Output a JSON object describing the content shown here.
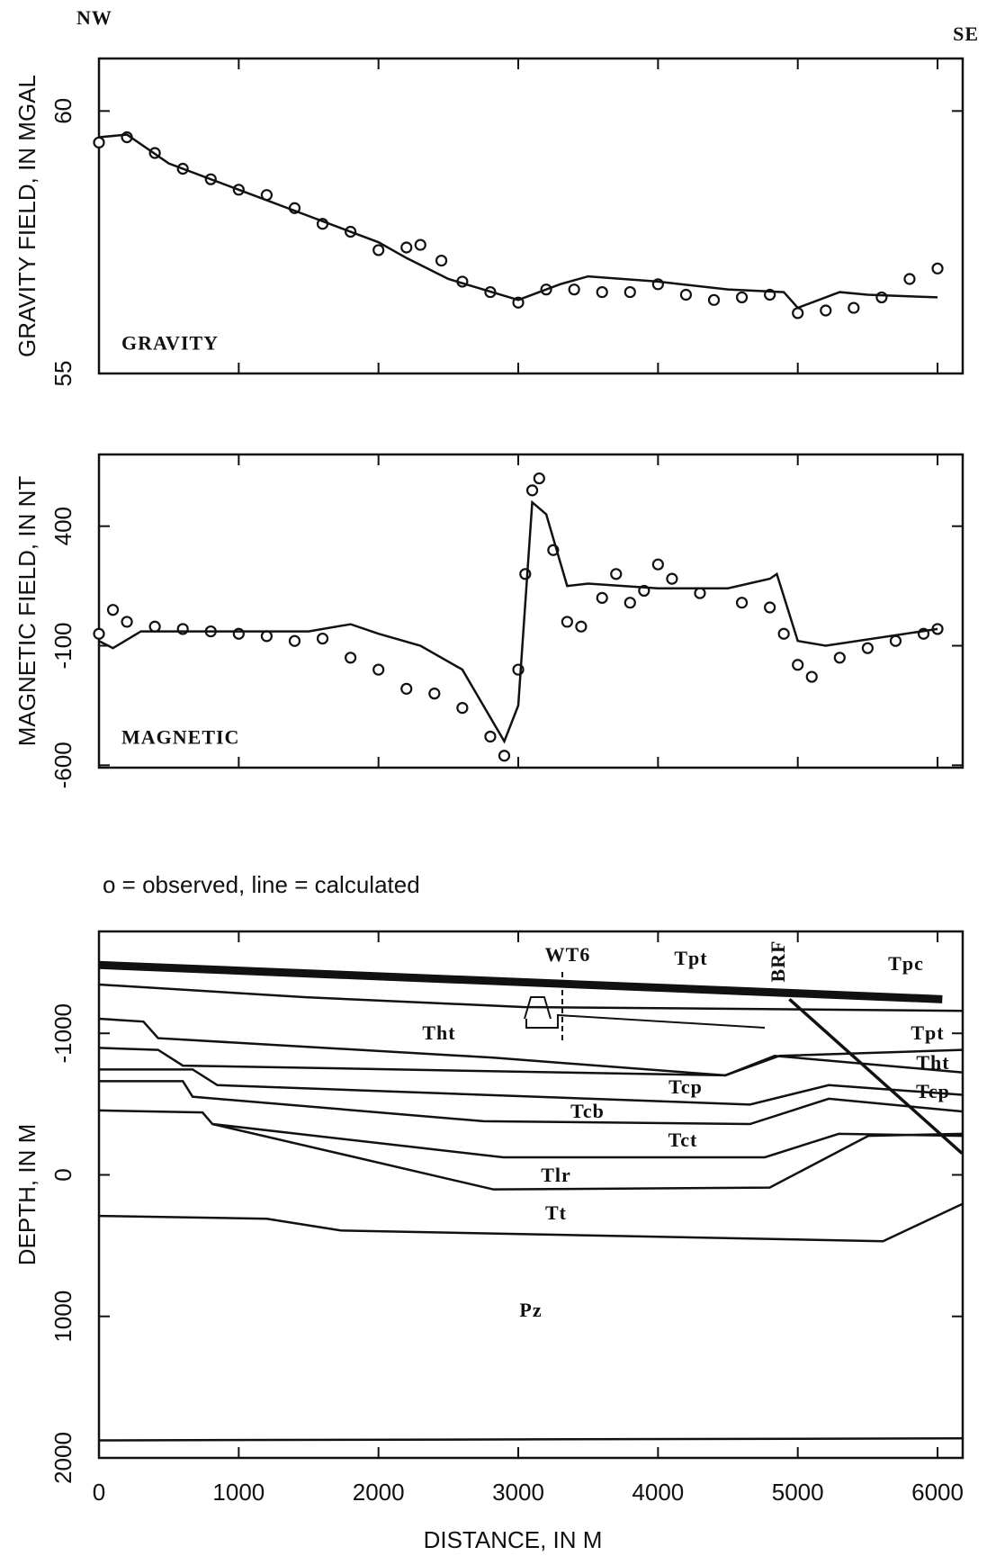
{
  "header": {
    "left": "NW",
    "right": "SE"
  },
  "note": "o = observed, line = calculated",
  "chart_data": [
    {
      "type": "profile",
      "label": "GRAVITY",
      "y_label": "GRAVITY FIELD, IN MGAL",
      "xlim": [
        0,
        6180
      ],
      "ylim": [
        55,
        61
      ],
      "yticks": [
        55,
        60
      ],
      "series": [
        {
          "style": "markers",
          "color": "#111111",
          "x": [
            0,
            200,
            400,
            600,
            800,
            1000,
            1200,
            1400,
            1600,
            1800,
            2000,
            2200,
            2300,
            2450,
            2600,
            2800,
            3000,
            3200,
            3400,
            3600,
            3800,
            4000,
            4200,
            4400,
            4600,
            4800,
            5000,
            5200,
            5400,
            5600,
            5800,
            6000
          ],
          "values": [
            59.4,
            59.5,
            59.2,
            58.9,
            58.7,
            58.5,
            58.4,
            58.15,
            57.85,
            57.7,
            57.35,
            57.4,
            57.45,
            57.15,
            56.75,
            56.55,
            56.35,
            56.6,
            56.6,
            56.55,
            56.55,
            56.7,
            56.5,
            56.4,
            56.45,
            56.5,
            56.15,
            56.2,
            56.25,
            56.45,
            56.8,
            57.0
          ]
        },
        {
          "style": "line",
          "color": "#111111",
          "x": [
            0,
            200,
            500,
            1000,
            1500,
            2000,
            2200,
            2500,
            3000,
            3300,
            3500,
            4000,
            4500,
            4900,
            5000,
            5300,
            5500,
            6000
          ],
          "values": [
            59.5,
            59.55,
            59.0,
            58.5,
            58.0,
            57.5,
            57.2,
            56.8,
            56.4,
            56.7,
            56.85,
            56.75,
            56.6,
            56.55,
            56.25,
            56.55,
            56.5,
            56.45
          ]
        }
      ]
    },
    {
      "type": "profile",
      "label": "MAGNETIC",
      "y_label": "MAGNETIC FIELD, IN NT",
      "xlim": [
        0,
        6180
      ],
      "ylim": [
        -610,
        700
      ],
      "yticks": [
        -600,
        -100,
        400
      ],
      "series": [
        {
          "style": "markers",
          "color": "#111111",
          "x": [
            0,
            100,
            200,
            400,
            600,
            800,
            1000,
            1200,
            1400,
            1600,
            1800,
            2000,
            2200,
            2400,
            2600,
            2800,
            2900,
            3000,
            3050,
            3100,
            3150,
            3250,
            3350,
            3450,
            3600,
            3700,
            3800,
            3900,
            4000,
            4100,
            4300,
            4600,
            4800,
            4900,
            5000,
            5100,
            5300,
            5500,
            5700,
            5900,
            6000
          ],
          "values": [
            -50,
            50,
            0,
            -20,
            -30,
            -40,
            -50,
            -60,
            -80,
            -70,
            -150,
            -200,
            -280,
            -300,
            -360,
            -480,
            -560,
            -200,
            200,
            550,
            600,
            300,
            0,
            -20,
            100,
            200,
            80,
            130,
            240,
            180,
            120,
            80,
            60,
            -50,
            -180,
            -230,
            -150,
            -110,
            -80,
            -50,
            -30
          ]
        },
        {
          "style": "line",
          "color": "#111111",
          "x": [
            0,
            100,
            300,
            1000,
            1500,
            1800,
            2000,
            2300,
            2600,
            2900,
            3000,
            3100,
            3200,
            3350,
            3500,
            4000,
            4500,
            4800,
            4850,
            5000,
            5200,
            6000
          ],
          "values": [
            -80,
            -110,
            -40,
            -40,
            -40,
            -10,
            -50,
            -100,
            -200,
            -500,
            -350,
            500,
            450,
            150,
            160,
            140,
            140,
            180,
            200,
            -80,
            -100,
            -30
          ]
        }
      ]
    },
    {
      "type": "section",
      "y_label": "DEPTH, IN M",
      "x_label": "DISTANCE, IN M",
      "xlim": [
        0,
        6180
      ],
      "ylim": [
        -1720,
        2000
      ],
      "y_inverted": true,
      "xticks": [
        0,
        1000,
        2000,
        3000,
        4000,
        5000,
        6000
      ],
      "yticks": [
        -1000,
        0,
        1000,
        2000
      ],
      "boundaries": [
        {
          "thick": true,
          "x": [
            0,
            6034
          ],
          "depth": [
            -1483,
            -1241
          ]
        },
        {
          "thick": false,
          "x": [
            0,
            1482,
            3035,
            6175
          ],
          "depth": [
            -1345,
            -1255,
            -1186,
            -1159
          ]
        },
        {
          "thick": false,
          "x": [
            0,
            318,
            423,
            2823,
            4481,
            4869,
            6175
          ],
          "depth": [
            -1103,
            -1083,
            -966,
            -828,
            -703,
            -841,
            -883
          ]
        },
        {
          "thick": false,
          "x": [
            0,
            423,
            600,
            4481,
            4834,
            6175
          ],
          "depth": [
            -897,
            -883,
            -772,
            -703,
            -841,
            -724
          ]
        },
        {
          "thick": false,
          "x": [
            0,
            670,
            847,
            4658,
            5222,
            6175
          ],
          "depth": [
            -745,
            -745,
            -634,
            -497,
            -634,
            -566
          ]
        },
        {
          "thick": false,
          "x": [
            0,
            600,
            670,
            2752,
            4658,
            5222,
            6175
          ],
          "depth": [
            -662,
            -662,
            -552,
            -379,
            -359,
            -538,
            -448
          ]
        },
        {
          "thick": false,
          "x": [
            0,
            741,
            812,
            2893,
            4764,
            5293,
            6175
          ],
          "depth": [
            -455,
            -441,
            -359,
            -124,
            -124,
            -290,
            -276
          ]
        },
        {
          "thick": false,
          "x": [
            812,
            2823,
            4799,
            5505,
            6175
          ],
          "depth": [
            -359,
            103,
            90,
            -276,
            -290
          ]
        },
        {
          "thick": false,
          "x": [
            0,
            1200,
            1729,
            5610,
            6175
          ],
          "depth": [
            290,
            310,
            393,
            469,
            207
          ]
        },
        {
          "thick": true,
          "x": [
            4940,
            6175
          ],
          "depth": [
            -1241,
            -152
          ]
        },
        {
          "thick": false,
          "x": [
            0,
            6175
          ],
          "depth": [
            1876,
            1862
          ]
        }
      ],
      "labels": [
        "WT6",
        "Tpt",
        "BRF",
        "Tpc",
        "Tht",
        "Tpt",
        "Tht",
        "Tcp",
        "Tcp",
        "Tcb",
        "Tct",
        "Tlr",
        "Tt",
        "Pz"
      ]
    }
  ]
}
